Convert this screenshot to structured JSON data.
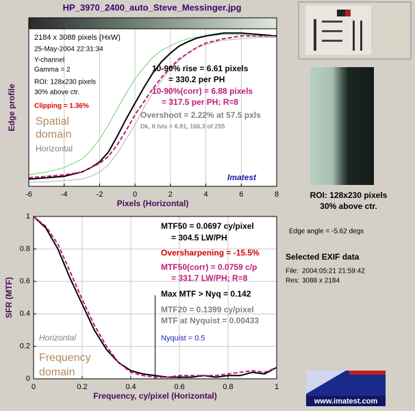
{
  "chart_data": [
    {
      "type": "line",
      "title": "HP_3970_2400_auto_Steve_Messinger.jpg",
      "ylabel": "Edge profile",
      "xlabel": "Pixels (Horizontal)",
      "x": [
        -6,
        -5,
        -4,
        -3,
        -2.5,
        -2,
        -1.5,
        -1,
        -0.5,
        0,
        0.5,
        1,
        1.5,
        2,
        2.5,
        3,
        3.5,
        4,
        5,
        6,
        7,
        8
      ],
      "series": [
        {
          "color": "#6fcf6f",
          "values": [
            0.03,
            0.05,
            0.08,
            0.14,
            0.2,
            0.28,
            0.38,
            0.49,
            0.6,
            0.7,
            0.78,
            0.85,
            0.9,
            0.93,
            0.96,
            0.98,
            0.99,
            1.0,
            1.01,
            1.01,
            1.0,
            1.0
          ]
        },
        {
          "color": "#b0b0b0",
          "values": [
            -0.02,
            -0.02,
            -0.01,
            0.0,
            0.02,
            0.05,
            0.1,
            0.18,
            0.28,
            0.38,
            0.5,
            0.6,
            0.69,
            0.77,
            0.83,
            0.88,
            0.92,
            0.94,
            0.97,
            0.98,
            0.99,
            0.99
          ]
        },
        {
          "color": "#000000",
          "values": [
            0.0,
            0.01,
            0.02,
            0.05,
            0.08,
            0.12,
            0.19,
            0.3,
            0.42,
            0.53,
            0.64,
            0.74,
            0.82,
            0.88,
            0.93,
            0.96,
            0.985,
            1.0,
            1.02,
            1.02,
            1.01,
            1.0
          ]
        },
        {
          "color": "#c0187a",
          "dash": true,
          "values": [
            0.01,
            0.02,
            0.03,
            0.05,
            0.08,
            0.11,
            0.16,
            0.24,
            0.34,
            0.45,
            0.54,
            0.63,
            0.71,
            0.78,
            0.84,
            0.88,
            0.92,
            0.95,
            0.98,
            1.0,
            1.0,
            1.0
          ]
        }
      ],
      "xlim": [
        -6,
        8
      ],
      "ylim": [
        -0.05,
        1.05
      ],
      "xticks": [
        -6,
        -4,
        -2,
        0,
        2,
        4,
        6,
        8
      ],
      "grid": true,
      "annotations": [
        {
          "text": "2184 x 3088 pixels (HxW)",
          "color": "#000000"
        },
        {
          "text": "25-May-2004 22:31:34",
          "color": "#000000"
        },
        {
          "text": "Y-channel",
          "color": "#000000"
        },
        {
          "text": "Gamma = 2",
          "color": "#000000"
        },
        {
          "text": "ROI: 128x230 pixels",
          "color": "#000000"
        },
        {
          "text": "30% above ctr.",
          "color": "#000000"
        },
        {
          "text": "Clipping =  1.36%",
          "color": "#e00000"
        },
        {
          "text": "Spatial",
          "color": "#b08860"
        },
        {
          "text": "domain",
          "color": "#b08860"
        },
        {
          "text": "Horizontal",
          "color": "#808080"
        },
        {
          "text": "10-90% rise = 6.61 pixels",
          "color": "#000000"
        },
        {
          "text": "= 330.2 per PH",
          "color": "#000000"
        },
        {
          "text": "10-90%(corr) = 6.88 pixels",
          "color": "#c0187a"
        },
        {
          "text": "= 317.5 per PH;  R=8",
          "color": "#c0187a"
        },
        {
          "text": "Overshoot = 2.22% at 57.5 pxls",
          "color": "#808080"
        },
        {
          "text": "Dk, lt lvls = 6.91, 166.3 of 255",
          "color": "#909090"
        },
        {
          "text": "Imatest",
          "color": "#1a1aa0"
        }
      ]
    },
    {
      "type": "line",
      "ylabel": "SFR (MTF)",
      "xlabel": "Frequency,  cy/pixel (Horizontal)",
      "x": [
        0,
        0.05,
        0.1,
        0.15,
        0.2,
        0.25,
        0.3,
        0.35,
        0.4,
        0.45,
        0.5,
        0.55,
        0.6,
        0.65,
        0.7,
        0.75,
        0.8,
        0.85,
        0.9,
        0.95,
        1
      ],
      "series": [
        {
          "color": "#000000",
          "values": [
            1,
            0.93,
            0.8,
            0.62,
            0.46,
            0.3,
            0.18,
            0.1,
            0.05,
            0.03,
            0.02,
            0.01,
            0.01,
            0.01,
            0.02,
            0.01,
            0.02,
            0.02,
            0.04,
            0.03,
            0.07
          ]
        },
        {
          "color": "#c0187a",
          "dash": true,
          "values": [
            1,
            0.94,
            0.83,
            0.66,
            0.49,
            0.33,
            0.2,
            0.1,
            0.04,
            0.02,
            0.01,
            0.01,
            0.02,
            0.02,
            0.02,
            0.02,
            0.03,
            0.04,
            0.05,
            0.04,
            0.07
          ]
        }
      ],
      "nyquist": 0.5,
      "xlim": [
        0,
        1
      ],
      "ylim": [
        0,
        1
      ],
      "xticks": [
        0,
        0.2,
        0.4,
        0.6,
        0.8,
        1
      ],
      "yticks": [
        0,
        0.2,
        0.4,
        0.6,
        0.8,
        1
      ],
      "grid": true,
      "annotations": [
        {
          "text": "MTF50 = 0.0697 cy/pixel",
          "color": "#000000"
        },
        {
          "text": "= 304.5 LW/PH",
          "color": "#000000"
        },
        {
          "text": "Oversharpening = -15.5%",
          "color": "#d00000"
        },
        {
          "text": "MTF50(corr) = 0.0759 c/p",
          "color": "#c0187a"
        },
        {
          "text": "= 331.7 LW/PH;  R=8",
          "color": "#c0187a"
        },
        {
          "text": "Max MTF > Nyq = 0.142",
          "color": "#000000"
        },
        {
          "text": "MTF20 = 0.1399 cy/pixel",
          "color": "#808080"
        },
        {
          "text": "MTF at Nyquist = 0.00433",
          "color": "#808080"
        },
        {
          "text": "Nyquist = 0.5",
          "color": "#2020c0"
        },
        {
          "text": "Horizontal",
          "color": "#808080"
        },
        {
          "text": "Frequency",
          "color": "#b08860"
        },
        {
          "text": "domain",
          "color": "#b08860"
        }
      ]
    }
  ],
  "side_panel": {
    "roi_label": "ROI: 128x230 pixels",
    "roi_position": "30% above ctr.",
    "edge_angle": "Edge angle = -5.62 degs",
    "exif_title": "Selected EXIF data",
    "exif": [
      [
        "File:",
        "2004:05:21 21:59:42"
      ],
      [
        "Res:",
        "3088 x 2184"
      ]
    ],
    "logo_text": "www.imatest.com"
  }
}
